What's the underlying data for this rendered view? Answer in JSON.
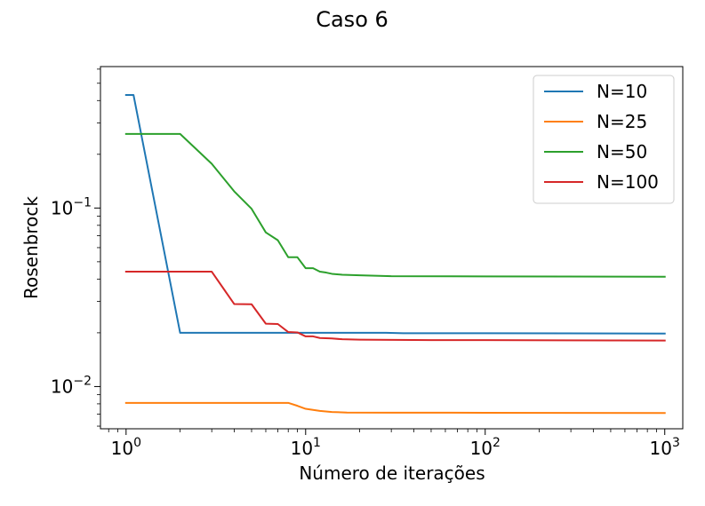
{
  "chart_data": {
    "type": "line",
    "title": "Caso 6",
    "xlabel": "Número de iterações",
    "ylabel": "Rosenbrock",
    "xscale": "log",
    "yscale": "log",
    "xlim": [
      0.72,
      1260
    ],
    "ylim": [
      0.0058,
      0.62
    ],
    "grid": false,
    "legend_position": "top-right",
    "x_ticks": [
      {
        "value": 1,
        "base": "10",
        "exp": "0"
      },
      {
        "value": 10,
        "base": "10",
        "exp": "1"
      },
      {
        "value": 100,
        "base": "10",
        "exp": "2"
      },
      {
        "value": 1000,
        "base": "10",
        "exp": "3"
      }
    ],
    "y_ticks": [
      {
        "value": 0.01,
        "base": "10",
        "exp": "−2"
      },
      {
        "value": 0.1,
        "base": "10",
        "exp": "−1"
      }
    ],
    "series": [
      {
        "name": "N=10",
        "color": "#1f77b4",
        "points": [
          [
            1,
            0.43
          ],
          [
            1.1,
            0.43
          ],
          [
            2,
            0.02
          ],
          [
            5,
            0.02
          ],
          [
            10,
            0.02
          ],
          [
            20,
            0.02
          ],
          [
            28,
            0.02
          ],
          [
            35,
            0.0199
          ],
          [
            100,
            0.0199
          ],
          [
            1000,
            0.0198
          ]
        ]
      },
      {
        "name": "N=25",
        "color": "#ff7f0e",
        "points": [
          [
            1,
            0.0081
          ],
          [
            2,
            0.0081
          ],
          [
            5,
            0.0081
          ],
          [
            8,
            0.0081
          ],
          [
            9,
            0.0078
          ],
          [
            10,
            0.0075
          ],
          [
            12,
            0.0073
          ],
          [
            14,
            0.0072
          ],
          [
            17,
            0.00715
          ],
          [
            30,
            0.00714
          ],
          [
            100,
            0.00713
          ],
          [
            1000,
            0.00711
          ]
        ]
      },
      {
        "name": "N=50",
        "color": "#2ca02c",
        "points": [
          [
            1,
            0.26
          ],
          [
            2,
            0.26
          ],
          [
            3,
            0.177
          ],
          [
            4,
            0.124
          ],
          [
            5,
            0.099
          ],
          [
            6,
            0.073
          ],
          [
            7,
            0.066
          ],
          [
            8,
            0.053
          ],
          [
            9,
            0.053
          ],
          [
            10,
            0.046
          ],
          [
            11,
            0.046
          ],
          [
            12,
            0.044
          ],
          [
            13,
            0.0435
          ],
          [
            14,
            0.0428
          ],
          [
            16,
            0.0423
          ],
          [
            20,
            0.042
          ],
          [
            30,
            0.0415
          ],
          [
            100,
            0.0414
          ],
          [
            1000,
            0.0412
          ]
        ]
      },
      {
        "name": "N=100",
        "color": "#d62728",
        "points": [
          [
            1,
            0.044
          ],
          [
            2,
            0.044
          ],
          [
            3,
            0.044
          ],
          [
            4,
            0.029
          ],
          [
            5,
            0.0289
          ],
          [
            6,
            0.0225
          ],
          [
            7,
            0.0224
          ],
          [
            8,
            0.0202
          ],
          [
            9,
            0.0201
          ],
          [
            10,
            0.0191
          ],
          [
            11,
            0.0191
          ],
          [
            12,
            0.0187
          ],
          [
            14,
            0.0186
          ],
          [
            16,
            0.0184
          ],
          [
            20,
            0.0183
          ],
          [
            50,
            0.0182
          ],
          [
            100,
            0.0182
          ],
          [
            1000,
            0.0181
          ]
        ]
      }
    ]
  }
}
